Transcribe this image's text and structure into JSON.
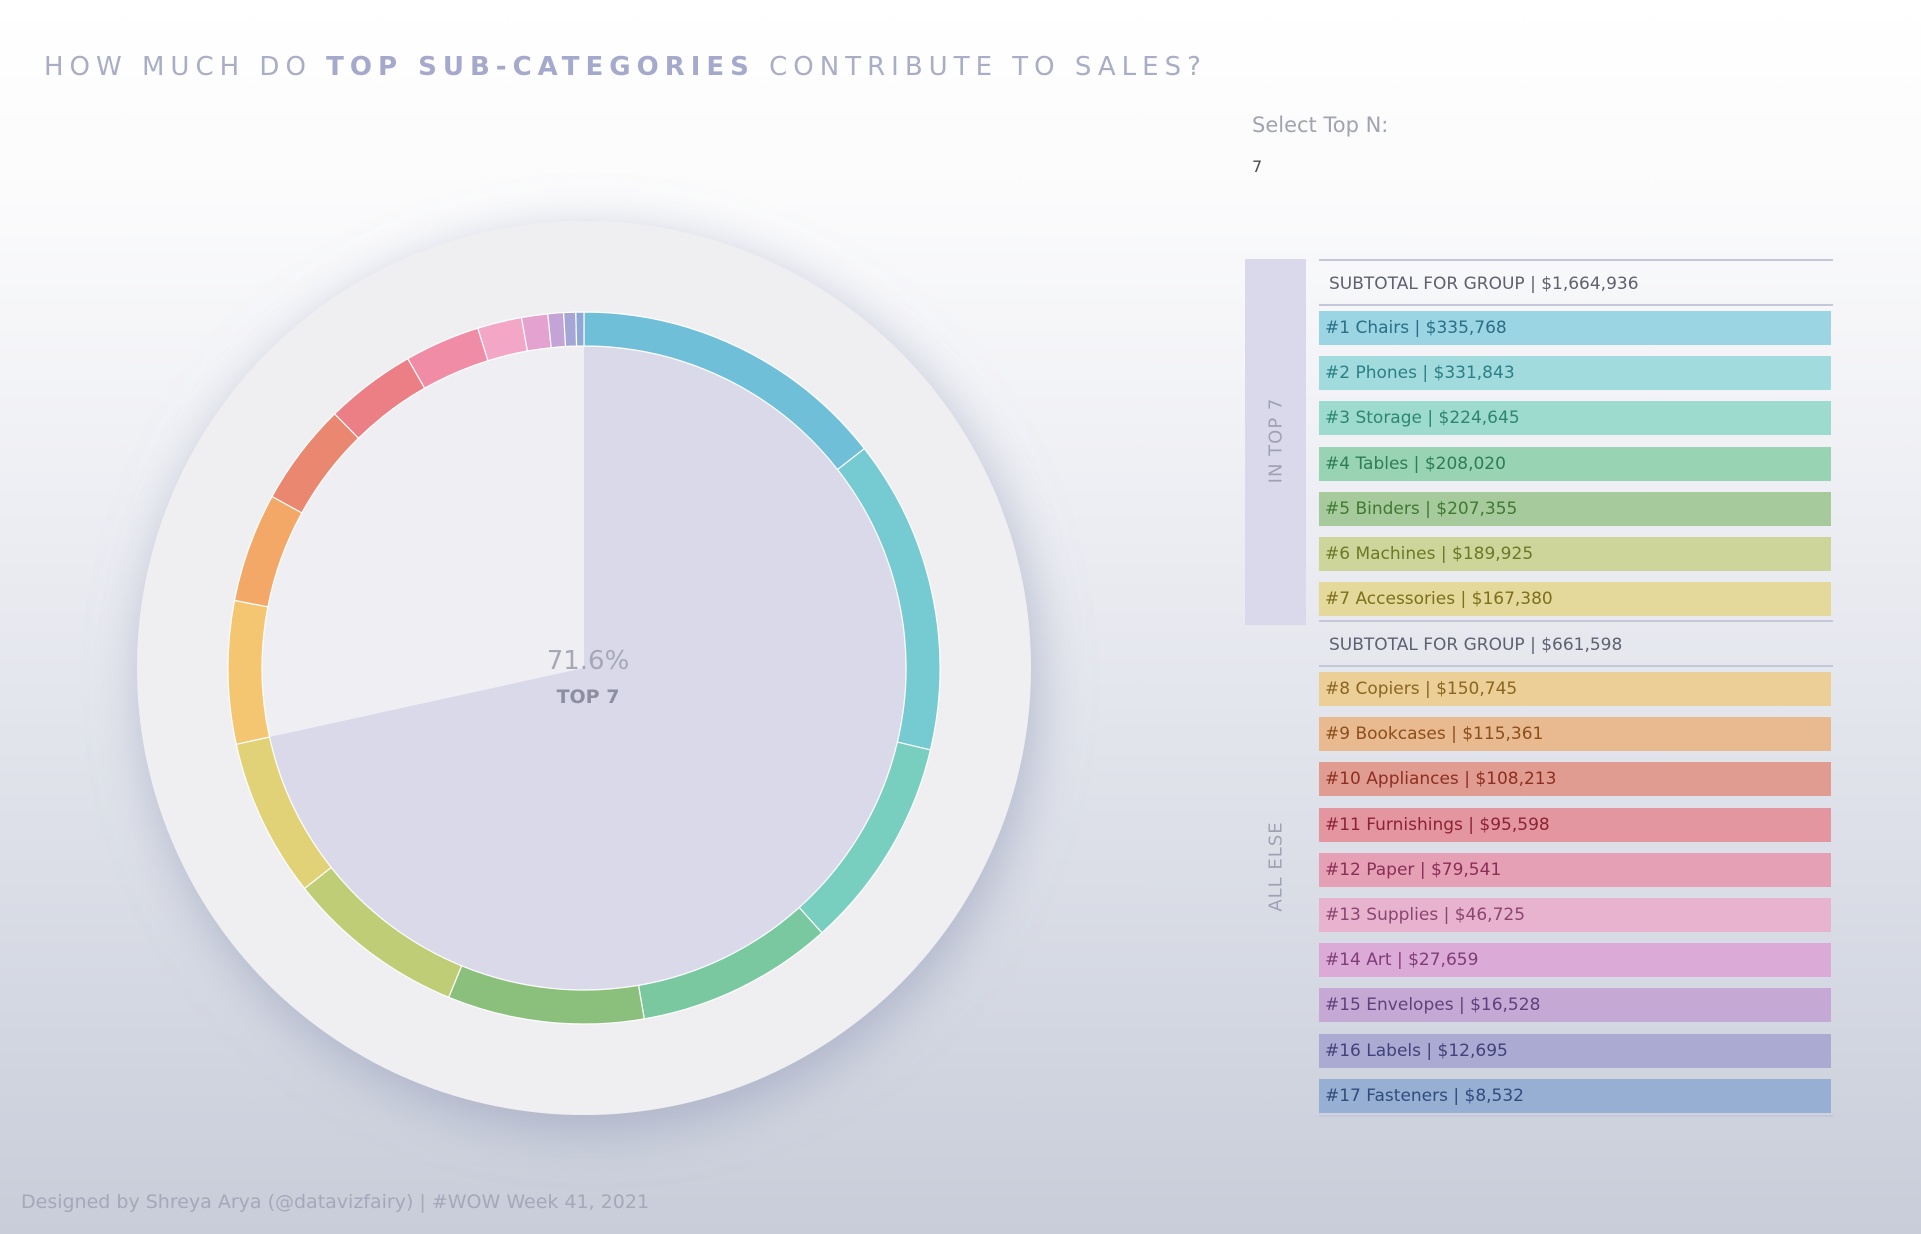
{
  "title": {
    "prefix": "HOW MUCH DO",
    "emphasis": "TOP SUB-CATEGORIES",
    "suffix": "CONTRIBUTE TO SALES?"
  },
  "filter": {
    "label": "Select Top N:",
    "value": "7"
  },
  "center": {
    "percent": "71.6%",
    "label": "TOP 7"
  },
  "groups": {
    "top": {
      "label": "IN TOP 7",
      "subtotal": "SUBTOTAL FOR GROUP | $1,664,936"
    },
    "rest": {
      "label": "ALL ELSE",
      "subtotal": "SUBTOTAL FOR GROUP | $661,598"
    }
  },
  "chart_data": {
    "type": "pie",
    "top_n": 7,
    "top_share_percent": 71.6,
    "items": [
      {
        "label": "#1 Chairs | $335,768",
        "name": "Chairs",
        "value": 335768,
        "color": "#6fbfd9",
        "bar_color": "#9bd4e3",
        "text_color": "#2a6f86"
      },
      {
        "label": "#2 Phones | $331,843",
        "name": "Phones",
        "value": 331843,
        "color": "#76cad1",
        "bar_color": "#a1dbde",
        "text_color": "#2b7f86"
      },
      {
        "label": "#3 Storage | $224,645",
        "name": "Storage",
        "value": 224645,
        "color": "#79cfbf",
        "bar_color": "#9edbcf",
        "text_color": "#2d8572"
      },
      {
        "label": "#4 Tables | $208,020",
        "name": "Tables",
        "value": 208020,
        "color": "#7ac8a0",
        "bar_color": "#98d4b3",
        "text_color": "#2d7d55"
      },
      {
        "label": "#5 Binders | $207,355",
        "name": "Binders",
        "value": 207355,
        "color": "#8bbf7c",
        "bar_color": "#a7ca9d",
        "text_color": "#3f7a32"
      },
      {
        "label": "#6 Machines | $189,925",
        "name": "Machines",
        "value": 189925,
        "color": "#bfcd77",
        "bar_color": "#ced59b",
        "text_color": "#6a7a24"
      },
      {
        "label": "#7 Accessories | $167,380",
        "name": "Accessories",
        "value": 167380,
        "color": "#e2d277",
        "bar_color": "#e4d99a",
        "text_color": "#7e6f1c"
      },
      {
        "label": "#8 Copiers | $150,745",
        "name": "Copiers",
        "value": 150745,
        "color": "#f5c671",
        "bar_color": "#eccf96",
        "text_color": "#8a6621"
      },
      {
        "label": "#9 Bookcases | $115,361",
        "name": "Bookcases",
        "value": 115361,
        "color": "#f3a868",
        "bar_color": "#e9ba90",
        "text_color": "#8c4e1a"
      },
      {
        "label": "#10 Appliances | $108,213",
        "name": "Appliances",
        "value": 108213,
        "color": "#ea8770",
        "bar_color": "#e19c92",
        "text_color": "#8d2f20"
      },
      {
        "label": "#11 Furnishings | $95,598",
        "name": "Furnishings",
        "value": 95598,
        "color": "#ec7f86",
        "bar_color": "#e395a0",
        "text_color": "#8c2233"
      },
      {
        "label": "#12 Paper | $79,541",
        "name": "Paper",
        "value": 79541,
        "color": "#f18ca6",
        "bar_color": "#e6a0b6",
        "text_color": "#8a2e55"
      },
      {
        "label": "#13 Supplies | $46,725",
        "name": "Supplies",
        "value": 46725,
        "color": "#f4a6c6",
        "bar_color": "#e7b3cf",
        "text_color": "#8c4470"
      },
      {
        "label": "#14 Art | $27,659",
        "name": "Art",
        "value": 27659,
        "color": "#e3a2d0",
        "bar_color": "#dcaad6",
        "text_color": "#7f3d78"
      },
      {
        "label": "#15 Envelopes | $16,528",
        "name": "Envelopes",
        "value": 16528,
        "color": "#c4a3d6",
        "bar_color": "#c5a8d3",
        "text_color": "#62407d"
      },
      {
        "label": "#16 Labels | $12,695",
        "name": "Labels",
        "value": 12695,
        "color": "#a5a5d6",
        "bar_color": "#abaad3",
        "text_color": "#41427a"
      },
      {
        "label": "#17 Fasteners | $8,532",
        "name": "Fasteners",
        "value": 8532,
        "color": "#8fa8d4",
        "bar_color": "#97afd3",
        "text_color": "#2f4c7c"
      }
    ]
  },
  "credit": "Designed by Shreya Arya (@datavizfairy) | #WOW Week 41, 2021"
}
